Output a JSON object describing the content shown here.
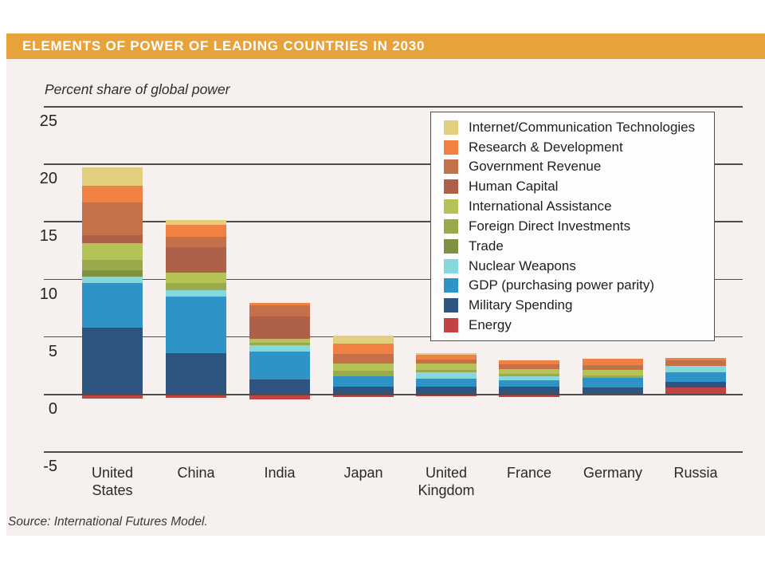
{
  "slide": {
    "title": "ELEMENTS OF POWER OF LEADING COUNTRIES IN 2030",
    "subtitle": "Percent share of global power",
    "source": "Source: International Futures Model.",
    "colors": {
      "header_bg": "#e7a23c",
      "body_bg": "#f6f0ef",
      "gridline": "#4d4d4d",
      "legend_border": "#4f4f4f"
    }
  },
  "chart_data": {
    "type": "bar",
    "stacked": true,
    "title": "Elements of Power of Leading Countries in 2030",
    "ylabel": "Percent share of global power",
    "ylim": [
      -5,
      25
    ],
    "yticks": [
      25,
      20,
      15,
      10,
      5,
      0,
      -5
    ],
    "grid": true,
    "legend_position": "upper-right",
    "categories": [
      "United States",
      "China",
      "India",
      "Japan",
      "United Kingdom",
      "France",
      "Germany",
      "Russia"
    ],
    "category_label_lines": [
      [
        "United",
        "States"
      ],
      [
        "China"
      ],
      [
        "India"
      ],
      [
        "Japan"
      ],
      [
        "United",
        "Kingdom"
      ],
      [
        "France"
      ],
      [
        "Germany"
      ],
      [
        "Russia"
      ]
    ],
    "note": "Values estimated from chart pixels; negative Energy values are drawn hanging below the zero baseline",
    "series": [
      {
        "key": "ict",
        "name": "Internet/Communication Technologies",
        "color": "#e2cf7e",
        "values": [
          1.6,
          0.45,
          0,
          0.7,
          0.15,
          0,
          0,
          0
        ]
      },
      {
        "key": "rd",
        "name": "Research & Development",
        "color": "#f08142",
        "values": [
          1.4,
          1.0,
          0.2,
          0.9,
          0.45,
          0.35,
          0.55,
          0.25
        ]
      },
      {
        "key": "gov",
        "name": "Government Revenue",
        "color": "#c4714a",
        "values": [
          2.85,
          0.9,
          1.0,
          0.85,
          0.3,
          0.4,
          0.45,
          0.5
        ]
      },
      {
        "key": "hc",
        "name": "Human Capital",
        "color": "#ae6048",
        "values": [
          0.7,
          2.2,
          1.95,
          0,
          0,
          0,
          0,
          0
        ]
      },
      {
        "key": "ia",
        "name": "International Assistance",
        "color": "#b4c256",
        "values": [
          1.45,
          0.9,
          0.3,
          0.6,
          0.55,
          0.4,
          0.45,
          0
        ]
      },
      {
        "key": "fdi",
        "name": "Foreign Direct Investments",
        "color": "#9aa94c",
        "values": [
          0.9,
          0.65,
          0.25,
          0.5,
          0.25,
          0.2,
          0.2,
          0
        ]
      },
      {
        "key": "trade",
        "name": "Trade",
        "color": "#7d9141",
        "values": [
          0.55,
          0,
          0,
          0,
          0,
          0,
          0,
          0
        ]
      },
      {
        "key": "nuclear",
        "name": "Nuclear Weapons",
        "color": "#85d8dc",
        "values": [
          0.55,
          0.55,
          0.55,
          0,
          0.5,
          0.4,
          0,
          0.55
        ]
      },
      {
        "key": "gdp",
        "name": "GDP (purchasing power parity)",
        "color": "#2e94c8",
        "values": [
          3.9,
          4.95,
          2.4,
          0.9,
          0.7,
          0.55,
          0.85,
          0.8
        ]
      },
      {
        "key": "military",
        "name": "Military Spending",
        "color": "#2e5480",
        "values": [
          5.75,
          3.5,
          1.25,
          0.6,
          0.65,
          0.6,
          0.55,
          0.5
        ]
      },
      {
        "key": "energy",
        "name": "Energy",
        "color": "#c14443",
        "values": [
          -0.4,
          -0.35,
          -0.5,
          -0.25,
          -0.2,
          -0.25,
          -0.15,
          0.55
        ]
      }
    ]
  }
}
